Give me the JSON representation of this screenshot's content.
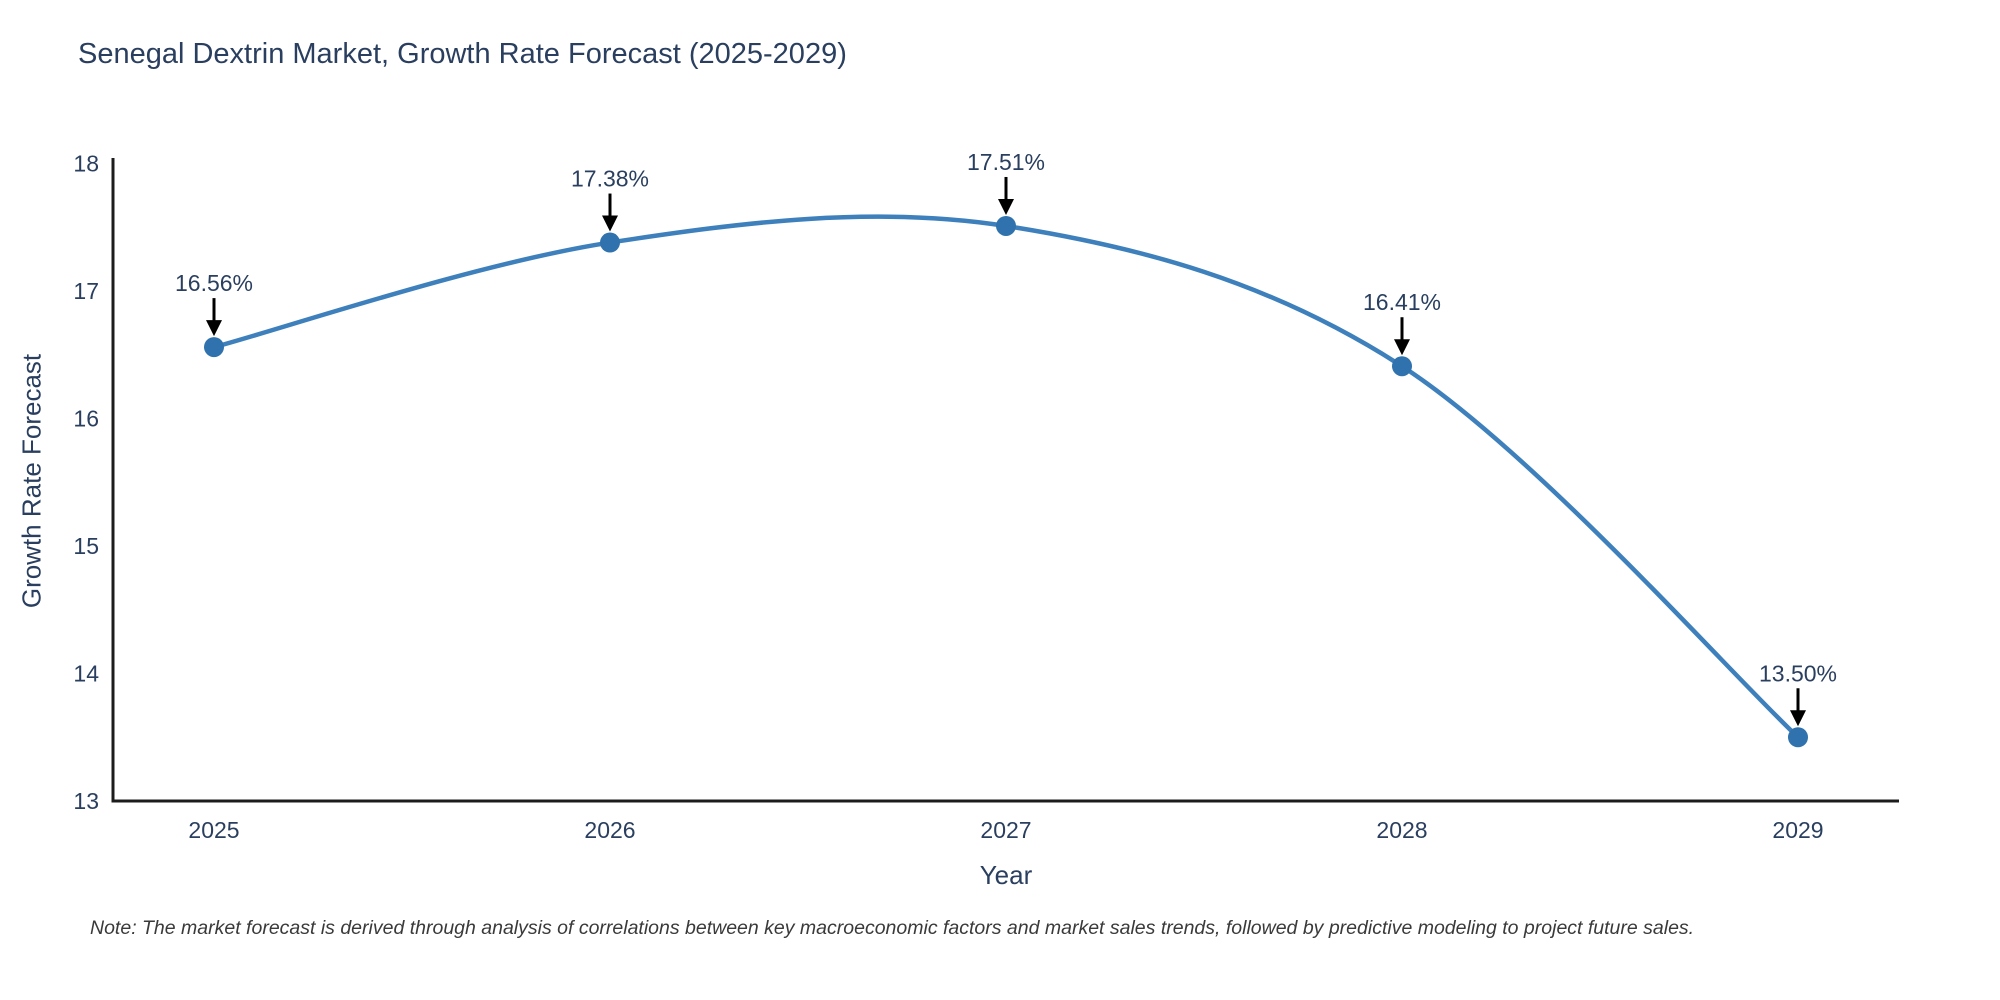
{
  "title": "Senegal Dextrin Market, Growth Rate Forecast (2025-2029)",
  "note": "Note: The market forecast is derived through analysis of correlations between key macroeconomic factors and market sales trends, followed by predictive modeling to project future sales.",
  "colors": {
    "line": "#3e80bc",
    "marker": "#2f72ad",
    "axis": "#1c1c1c",
    "text": "#2a3f5f",
    "annotation_arrow": "#000000",
    "note_text": "#3a3a3a",
    "background": "#ffffff"
  },
  "chart_data": {
    "type": "line",
    "title": "Senegal Dextrin Market, Growth Rate Forecast (2025-2029)",
    "xlabel": "Year",
    "ylabel": "Growth Rate Forecast",
    "categories": [
      "2025",
      "2026",
      "2027",
      "2028",
      "2029"
    ],
    "values": [
      16.56,
      17.38,
      17.51,
      16.41,
      13.5
    ],
    "point_labels": [
      "16.56%",
      "17.38%",
      "17.51%",
      "16.41%",
      "13.50%"
    ],
    "ylim": [
      13,
      18
    ],
    "yticks": [
      "13",
      "14",
      "15",
      "16",
      "17",
      "18"
    ],
    "grid": false,
    "legend_position": "none",
    "line_shape": "spline",
    "markers": true,
    "annotation_style": "value label above point with black down arrow"
  }
}
